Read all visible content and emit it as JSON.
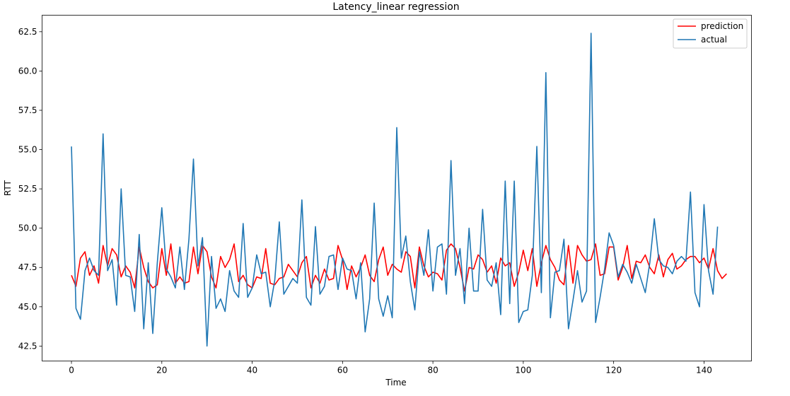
{
  "chart_data": {
    "type": "line",
    "title": "Latency_linear regression",
    "xlabel": "Time",
    "ylabel": "RTT",
    "xlim": [
      -6.5,
      150.5
    ],
    "ylim": [
      41.55,
      63.55
    ],
    "xticks": [
      0,
      20,
      40,
      60,
      80,
      100,
      120,
      140
    ],
    "yticks": [
      42.5,
      45.0,
      47.5,
      50.0,
      52.5,
      55.0,
      57.5,
      60.0,
      62.5
    ],
    "ytick_labels": [
      "42.5",
      "45.0",
      "47.5",
      "50.0",
      "52.5",
      "55.0",
      "57.5",
      "60.0",
      "62.5"
    ],
    "xtick_labels": [
      "0",
      "20",
      "40",
      "60",
      "80",
      "100",
      "120",
      "140"
    ],
    "grid": false,
    "legend_position": "top-right",
    "series": [
      {
        "name": "prediction",
        "color": "#ff0000",
        "values": [
          47.0,
          46.3,
          48.1,
          48.5,
          47.0,
          47.6,
          46.5,
          48.9,
          47.6,
          48.7,
          48.3,
          46.9,
          47.6,
          47.2,
          46.2,
          48.8,
          47.5,
          46.6,
          46.2,
          46.4,
          48.7,
          47.0,
          49.0,
          46.5,
          46.9,
          46.5,
          46.6,
          48.8,
          47.1,
          48.9,
          48.5,
          46.9,
          46.2,
          48.2,
          47.5,
          48.0,
          49.0,
          46.6,
          47.0,
          46.4,
          46.2,
          46.9,
          46.8,
          48.7,
          46.5,
          46.4,
          46.8,
          46.9,
          47.7,
          47.3,
          46.9,
          47.8,
          48.2,
          46.2,
          47.0,
          46.5,
          47.4,
          46.7,
          46.8,
          48.9,
          48.0,
          46.1,
          47.6,
          46.9,
          47.5,
          48.3,
          47.0,
          46.6,
          48.0,
          48.8,
          47.0,
          47.7,
          47.4,
          47.2,
          48.5,
          48.2,
          46.2,
          48.8,
          47.6,
          46.9,
          47.2,
          47.1,
          46.7,
          48.6,
          49.0,
          48.7,
          47.5,
          46.0,
          47.5,
          47.4,
          48.3,
          48.0,
          47.2,
          47.6,
          46.5,
          48.1,
          47.6,
          47.8,
          46.3,
          47.2,
          48.6,
          47.3,
          48.7,
          46.3,
          47.8,
          48.9,
          48.0,
          47.5,
          46.7,
          46.4,
          48.9,
          46.5,
          48.9,
          48.3,
          47.9,
          48.0,
          49.0,
          47.0,
          47.1,
          48.8,
          48.8,
          46.7,
          47.5,
          48.9,
          46.8,
          47.9,
          47.8,
          48.3,
          47.5,
          47.1,
          48.3,
          46.9,
          48.0,
          48.4,
          47.4,
          47.6,
          48.0,
          48.2,
          48.2,
          47.8,
          48.1,
          47.4,
          48.7,
          47.3,
          46.8,
          47.1
        ]
      },
      {
        "name": "actual",
        "color": "#1f77b4",
        "values": [
          55.2,
          44.9,
          44.2,
          47.3,
          48.1,
          47.3,
          47.0,
          56.0,
          47.3,
          48.0,
          45.1,
          52.5,
          47.0,
          46.9,
          44.7,
          49.6,
          43.6,
          47.8,
          43.3,
          47.8,
          51.3,
          47.4,
          46.9,
          46.2,
          48.8,
          46.1,
          49.3,
          54.4,
          47.6,
          49.4,
          42.5,
          48.2,
          44.9,
          45.5,
          44.7,
          47.3,
          46.0,
          45.6,
          50.3,
          45.6,
          46.2,
          48.3,
          47.1,
          47.2,
          45.0,
          46.7,
          50.4,
          45.8,
          46.3,
          46.8,
          46.5,
          51.8,
          45.6,
          45.1,
          50.1,
          45.8,
          46.3,
          48.2,
          48.3,
          46.1,
          48.1,
          47.4,
          47.3,
          45.5,
          47.8,
          43.4,
          45.5,
          51.6,
          45.5,
          44.4,
          45.7,
          44.3,
          56.4,
          48.1,
          49.5,
          46.6,
          44.8,
          48.5,
          47.0,
          49.9,
          46.0,
          48.8,
          49.0,
          45.8,
          54.3,
          47.0,
          48.7,
          45.2,
          50.0,
          46.0,
          46.0,
          51.2,
          46.7,
          46.3,
          47.8,
          44.5,
          53.0,
          45.2,
          53.0,
          44.0,
          44.7,
          44.8,
          47.0,
          55.2,
          45.9,
          59.9,
          44.3,
          47.2,
          47.3,
          49.3,
          43.6,
          45.4,
          47.3,
          45.3,
          46.0,
          62.4,
          44.0,
          45.6,
          47.4,
          49.7,
          48.9,
          46.9,
          47.7,
          47.2,
          46.5,
          47.7,
          46.8,
          45.9,
          47.8,
          50.6,
          48.0,
          47.6,
          47.5,
          47.1,
          47.9,
          48.2,
          47.9,
          52.3,
          45.9,
          45.0,
          51.5,
          47.3,
          45.8,
          50.1
        ]
      }
    ]
  }
}
